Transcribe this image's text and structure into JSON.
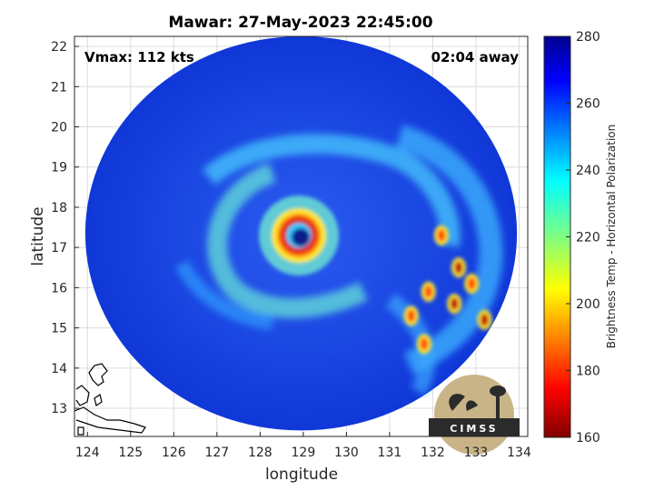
{
  "chart_data": {
    "type": "heatmap",
    "title": "Mawar: 27-May-2023 22:45:00",
    "xlabel": "longitude",
    "ylabel": "latitude",
    "xlim": [
      123.7,
      134.2
    ],
    "ylim": [
      12.3,
      22.25
    ],
    "xticks": [
      124,
      125,
      126,
      127,
      128,
      129,
      130,
      131,
      132,
      133,
      134
    ],
    "yticks": [
      13,
      14,
      15,
      16,
      17,
      18,
      19,
      20,
      21,
      22
    ],
    "grid": true,
    "annotations": {
      "vmax": "Vmax: 112 kts",
      "time_away": "02:04 away"
    },
    "storm_center": {
      "lon": 128.9,
      "lat": 17.2
    },
    "colorbar": {
      "label": "Brightness Temp - Horizontal Polarization",
      "range": [
        160,
        280
      ],
      "ticks": [
        280,
        260,
        240,
        220,
        200,
        180,
        160
      ],
      "colormap": "jet",
      "reversed_top_to_bottom": true
    },
    "scan_extent": {
      "center_lon": 128.95,
      "center_lat": 17.35,
      "radius_deg": 5.0
    },
    "cold_cells_lonlat": [
      [
        132.6,
        16.5
      ],
      [
        132.2,
        17.3
      ],
      [
        132.9,
        16.1
      ],
      [
        133.2,
        15.2
      ],
      [
        131.9,
        15.9
      ],
      [
        131.8,
        14.6
      ],
      [
        132.5,
        15.6
      ],
      [
        131.5,
        15.3
      ]
    ],
    "logo_text": "CIMSS"
  },
  "colors": {
    "background": "#ffffff",
    "axis": "#262626",
    "grid": "#dcdcdc",
    "coast": "#000000",
    "warm_field": "#1c46e6",
    "logo_bg": "#2b2b2b"
  }
}
